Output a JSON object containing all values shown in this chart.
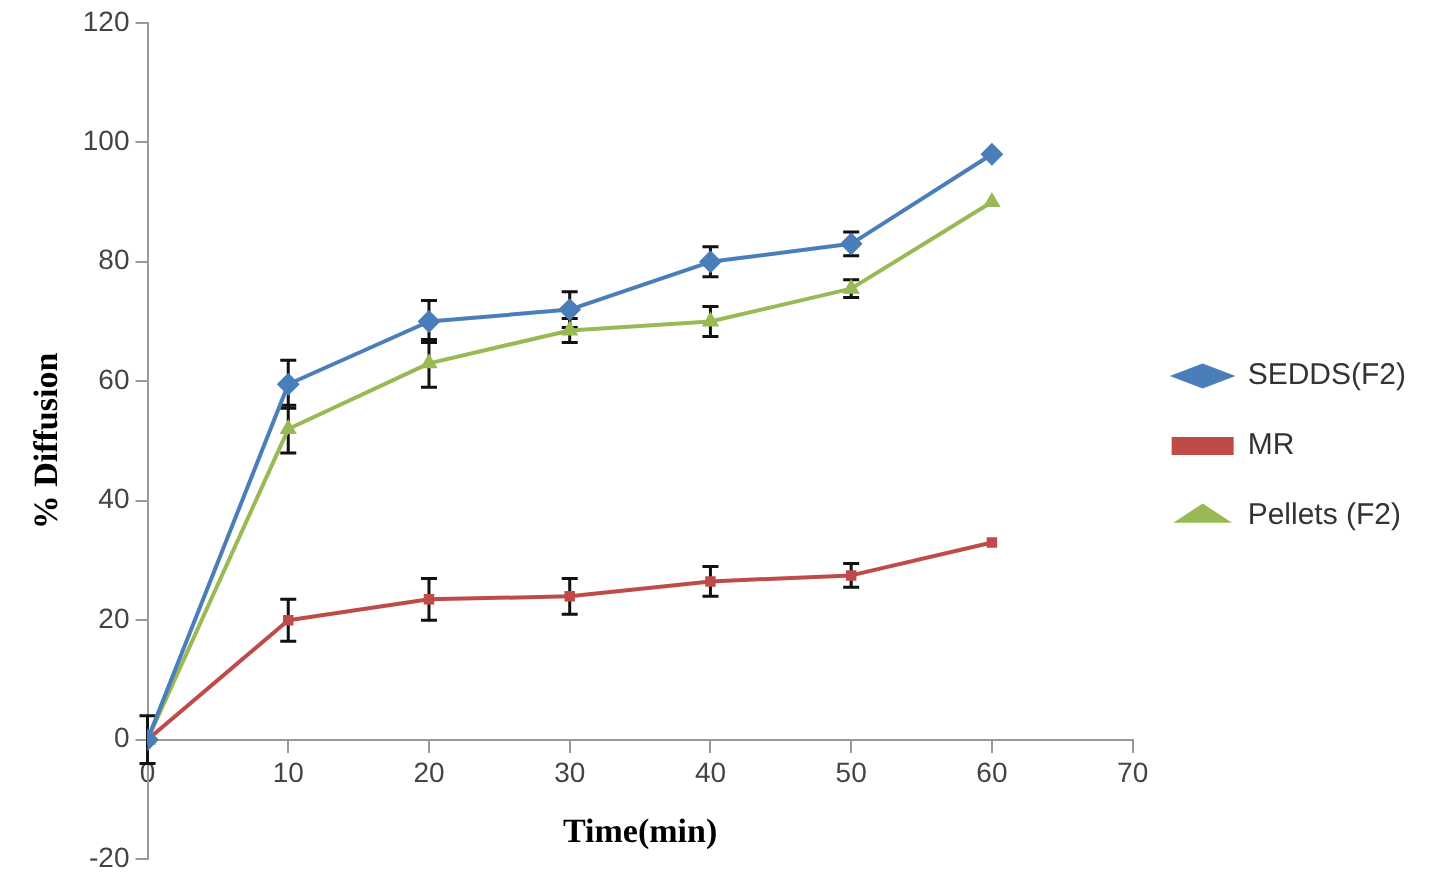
{
  "chart_data": {
    "type": "line",
    "xlabel": "Time(min)",
    "ylabel": "% Diffusion",
    "x": [
      0,
      10,
      20,
      30,
      40,
      50,
      60
    ],
    "series": [
      {
        "name": "SEDDS(F2)",
        "color": "#4a7ebb",
        "marker": "diamond",
        "values": [
          0,
          59.5,
          70,
          72,
          80,
          83,
          98
        ],
        "errors": [
          4,
          4,
          3.5,
          3,
          2.5,
          2,
          null
        ]
      },
      {
        "name": "MR",
        "color": "#be4b48",
        "marker": "square",
        "values": [
          0,
          20,
          23.5,
          24,
          26.5,
          27.5,
          33
        ],
        "errors": [
          null,
          3.5,
          3.5,
          3,
          2.5,
          2,
          null
        ]
      },
      {
        "name": "Pellets (F2)",
        "color": "#98b954",
        "marker": "triangle",
        "values": [
          0,
          52,
          63,
          68.5,
          70,
          75.5,
          90
        ],
        "errors": [
          null,
          4,
          4,
          2,
          2.5,
          1.5,
          null
        ]
      }
    ],
    "xlim": [
      0,
      70
    ],
    "xticks": [
      0,
      10,
      20,
      30,
      40,
      50,
      60,
      70
    ],
    "ylim": [
      -20,
      120
    ],
    "yticks": [
      -20,
      0,
      20,
      40,
      60,
      80,
      100,
      120
    ],
    "grid": false,
    "legend": "right"
  }
}
